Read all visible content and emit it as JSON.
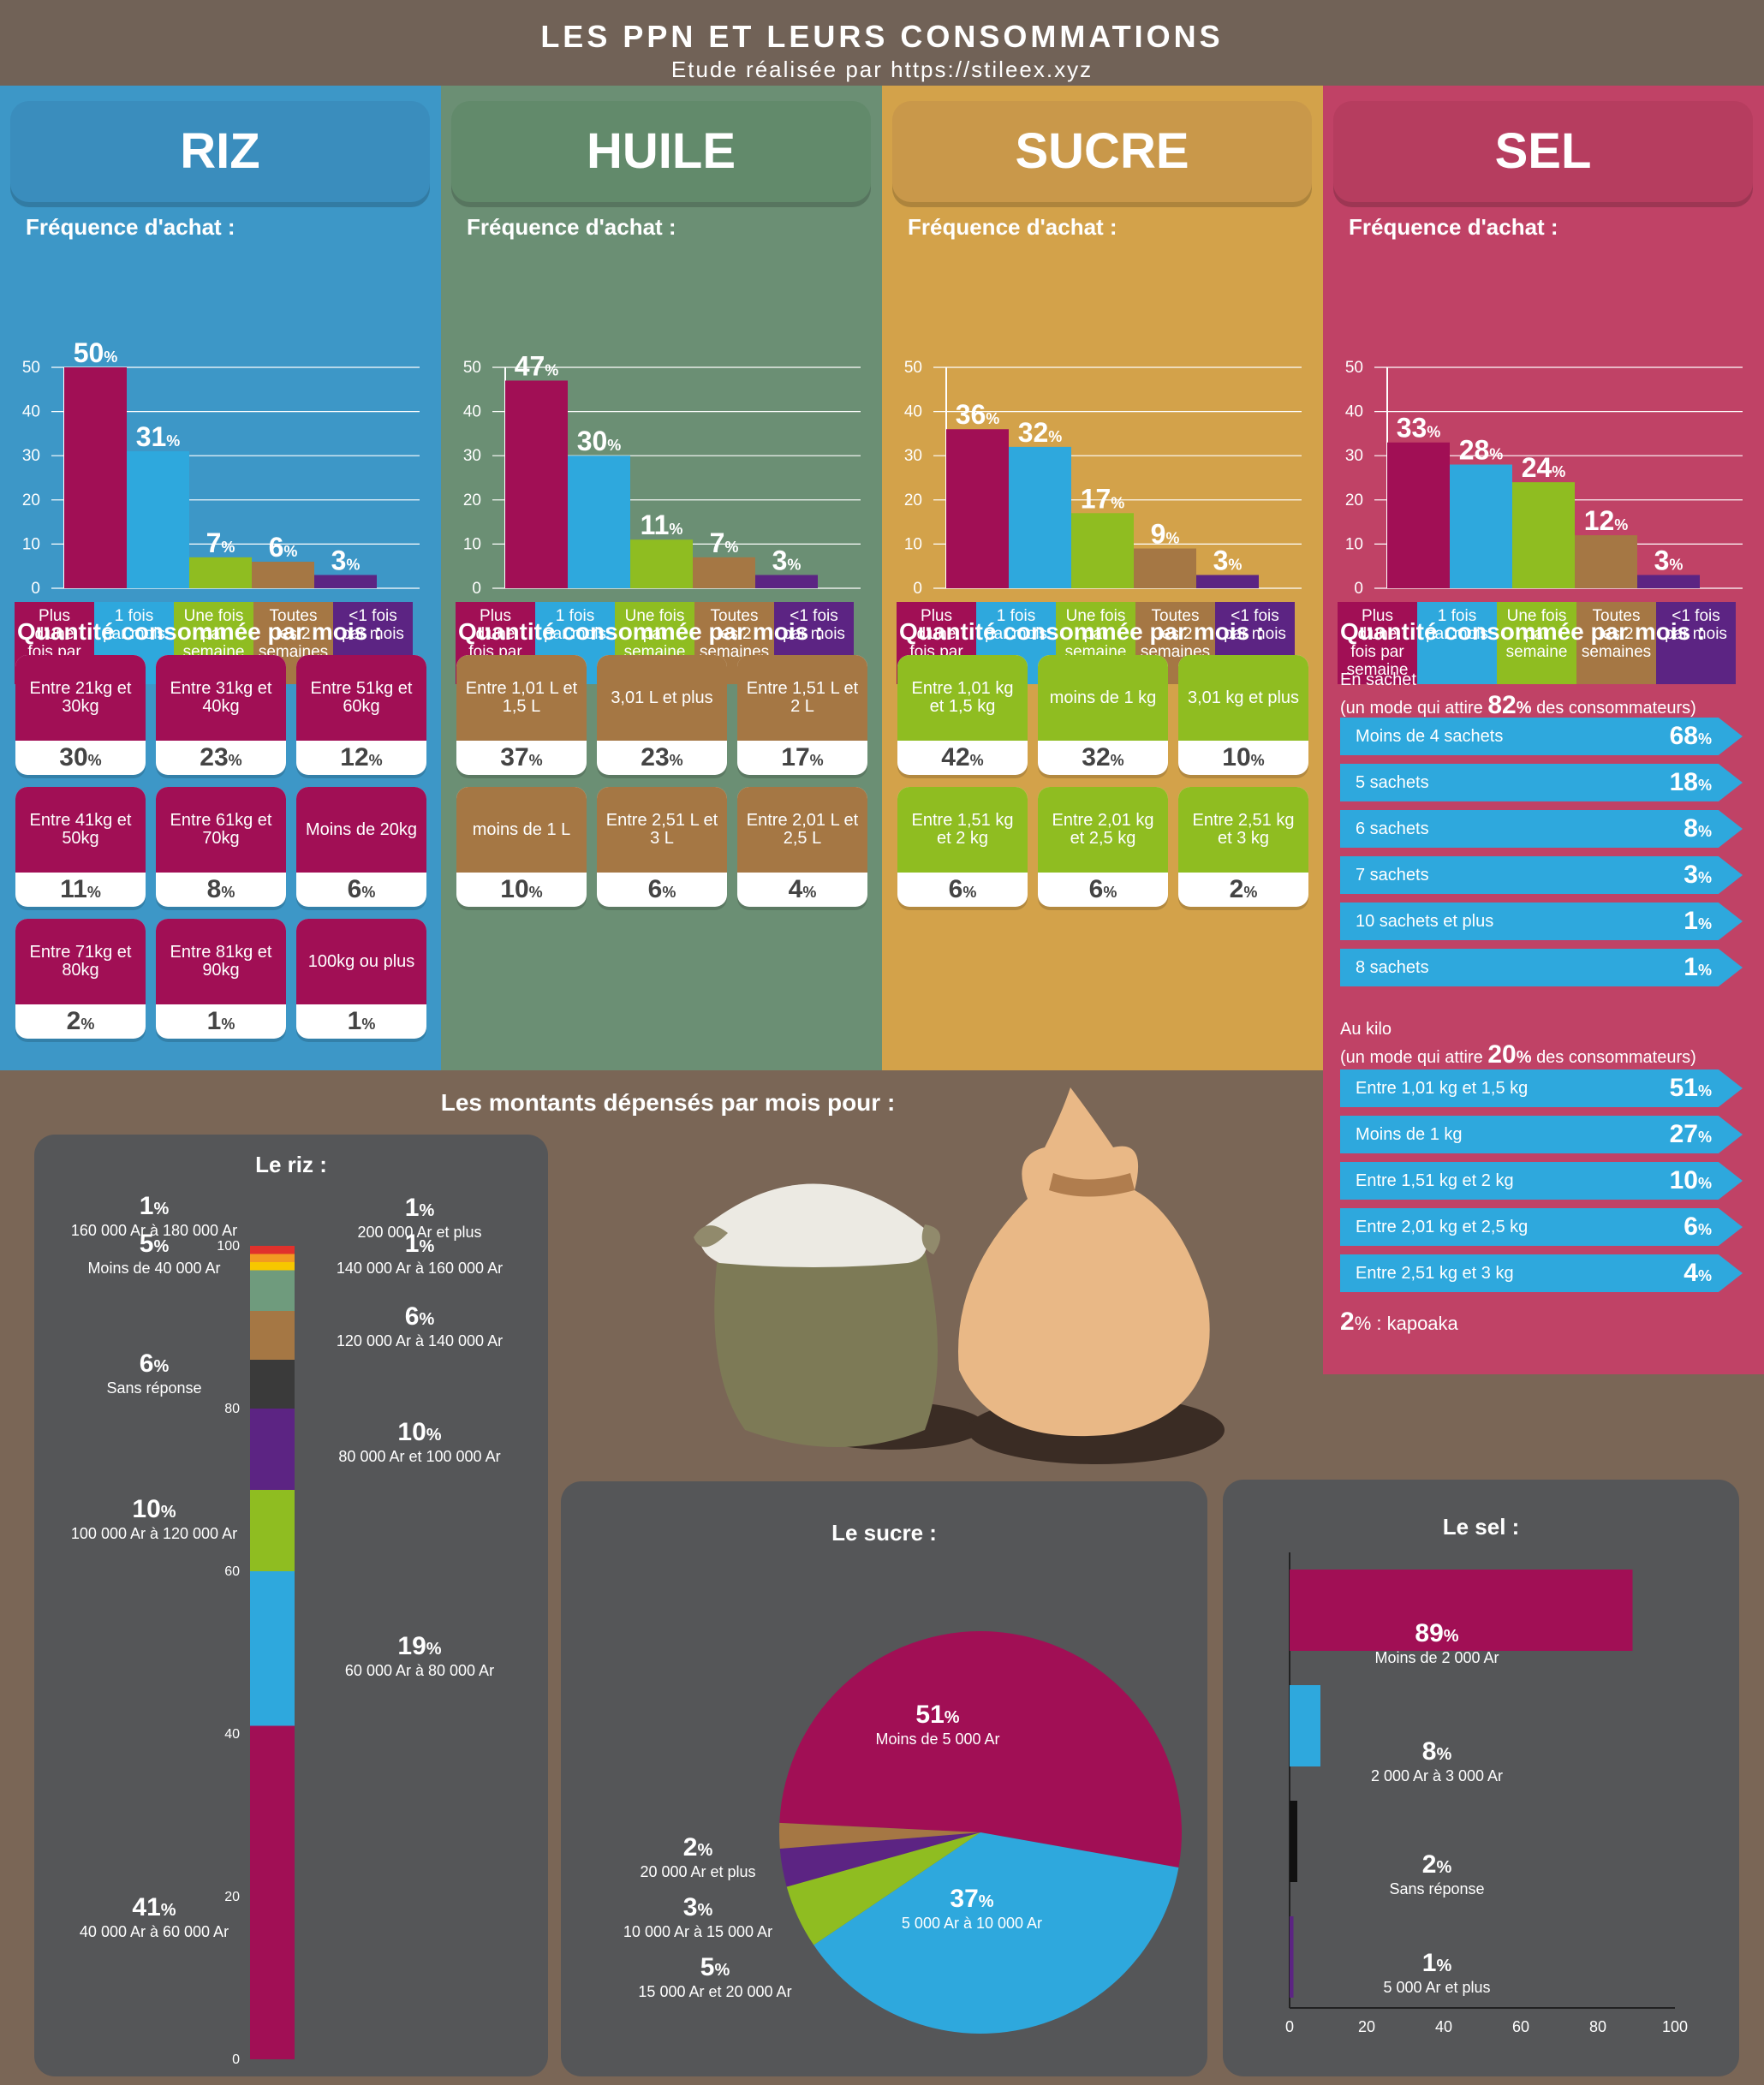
{
  "header": {
    "title": "LES PPN ET LEURS CONSOMMATIONS",
    "subtitle": "Etude réalisée par https://stileex.xyz"
  },
  "freq_label": "Fréquence d'achat :",
  "qty_label": "Quantité consommée par mois :",
  "pct_sign": "%",
  "categories": [
    "Plus d'une fois par semaine",
    "1 fois par mois",
    "Une fois par semaine",
    "Toutes les 2 semaines",
    "<1 fois par mois"
  ],
  "colors": {
    "plum": "#a10f55",
    "blue": "#2ea8dd",
    "green": "#8fbd21",
    "brown": "#a57744",
    "purple": "#5c2483",
    "dark": "#3a3a3a",
    "teal": "#6f9b7d",
    "red": "#e0312c",
    "orange": "#f29a22",
    "yellow": "#f7c700"
  },
  "chart_data": [
    {
      "type": "bar",
      "title": "RIZ",
      "ylim": [
        0,
        50
      ],
      "yticks": [
        0,
        10,
        20,
        30,
        40,
        50
      ],
      "categories": [
        "Plus d'une fois par semaine",
        "1 fois par mois",
        "Une fois par semaine",
        "Toutes les 2 semaines",
        "<1 fois par mois"
      ],
      "values": [
        50,
        31,
        7,
        6,
        3
      ]
    },
    {
      "type": "bar",
      "title": "HUILE",
      "ylim": [
        0,
        50
      ],
      "yticks": [
        0,
        10,
        20,
        30,
        40,
        50
      ],
      "categories": [
        "Plus d'une fois par semaine",
        "1 fois par mois",
        "Une fois par semaine",
        "Toutes les 2 semaines",
        "<1 fois par mois"
      ],
      "values": [
        47,
        30,
        11,
        7,
        3
      ]
    },
    {
      "type": "bar",
      "title": "SUCRE",
      "ylim": [
        0,
        50
      ],
      "yticks": [
        0,
        10,
        20,
        30,
        40,
        50
      ],
      "categories": [
        "Plus d'une fois par semaine",
        "1 fois par mois",
        "Une fois par semaine",
        "Toutes les 2 semaines",
        "<1 fois par mois"
      ],
      "values": [
        36,
        32,
        17,
        9,
        3
      ]
    },
    {
      "type": "bar",
      "title": "SEL",
      "ylim": [
        0,
        50
      ],
      "yticks": [
        0,
        10,
        20,
        30,
        40,
        50
      ],
      "categories": [
        "Plus d'une fois par semaine",
        "1 fois par mois",
        "Une fois par semaine",
        "Toutes les 2 semaines",
        "<1 fois par mois"
      ],
      "values": [
        33,
        28,
        24,
        12,
        3
      ]
    },
    {
      "type": "bar",
      "title": "Le riz :",
      "ylim": [
        0,
        100
      ],
      "yticks": [
        0,
        20,
        40,
        60,
        80,
        100
      ],
      "segments": [
        {
          "label": "40 000 Ar à 60 000 Ar",
          "value": 41,
          "color": "#a10f55"
        },
        {
          "label": "60 000 Ar à 80 000 Ar",
          "value": 19,
          "color": "#2ea8dd"
        },
        {
          "label": "100 000 Ar à 120 000 Ar",
          "value": 10,
          "color": "#8fbd21"
        },
        {
          "label": "80 000 Ar et 100 000 Ar",
          "value": 10,
          "color": "#5c2483"
        },
        {
          "label": "Sans réponse",
          "value": 6,
          "color": "#3a3a3a"
        },
        {
          "label": "120 000 Ar à 140 000 Ar",
          "value": 6,
          "color": "#a57744"
        },
        {
          "label": "Moins de 40 000 Ar",
          "value": 5,
          "color": "#6f9b7d"
        },
        {
          "label": "140 000 Ar à 160 000 Ar",
          "value": 1,
          "color": "#f7c700"
        },
        {
          "label": "160 000 Ar à 180 000 Ar",
          "value": 1,
          "color": "#f29a22"
        },
        {
          "label": "200 000 Ar et plus",
          "value": 1,
          "color": "#e0312c"
        }
      ]
    },
    {
      "type": "pie",
      "title": "Le sucre :",
      "slices": [
        {
          "label": "Moins de 5 000 Ar",
          "value": 51,
          "color": "#a10f55"
        },
        {
          "label": "5 000 Ar à 10 000 Ar",
          "value": 37,
          "color": "#2ea8dd"
        },
        {
          "label": "15 000 Ar et 20 000 Ar",
          "value": 5,
          "color": "#8fbd21"
        },
        {
          "label": "10 000 Ar à 15 000 Ar",
          "value": 3,
          "color": "#5c2483"
        },
        {
          "label": "20 000 Ar et plus",
          "value": 2,
          "color": "#a57744"
        }
      ]
    },
    {
      "type": "bar",
      "title": "Le sel :",
      "orientation": "horizontal",
      "xlim": [
        0,
        100
      ],
      "xticks": [
        0,
        20,
        40,
        60,
        80,
        100
      ],
      "bars": [
        {
          "label": "Moins de 2 000 Ar",
          "value": 89,
          "color": "#a10f55"
        },
        {
          "label": "2 000 Ar à 3 000 Ar",
          "value": 8,
          "color": "#2ea8dd"
        },
        {
          "label": "Sans réponse",
          "value": 2,
          "color": "#111111"
        },
        {
          "label": "5 000 Ar et plus",
          "value": 1,
          "color": "#5c2483"
        }
      ]
    }
  ],
  "riz_qty": [
    [
      "Entre 21kg et 30kg",
      "30"
    ],
    [
      "Entre 31kg et 40kg",
      "23"
    ],
    [
      "Entre 51kg et 60kg",
      "12"
    ],
    [
      "Entre 41kg et 50kg",
      "11"
    ],
    [
      "Entre 61kg et 70kg",
      "8"
    ],
    [
      "Moins de 20kg",
      "6"
    ],
    [
      "Entre 71kg et 80kg",
      "2"
    ],
    [
      "Entre 81kg et 90kg",
      "1"
    ],
    [
      "100kg ou plus",
      "1"
    ]
  ],
  "huile_qty": [
    [
      "Entre 1,01 L et 1,5 L",
      "37"
    ],
    [
      "3,01 L et plus",
      "23"
    ],
    [
      "Entre 1,51 L et 2 L",
      "17"
    ],
    [
      "moins de 1 L",
      "10"
    ],
    [
      "Entre 2,51 L et 3 L",
      "6"
    ],
    [
      "Entre 2,01 L et 2,5 L",
      "4"
    ]
  ],
  "sucre_qty": [
    [
      "Entre 1,01 kg et 1,5 kg",
      "42"
    ],
    [
      "moins de 1 kg",
      "32"
    ],
    [
      "3,01 kg et plus",
      "10"
    ],
    [
      "Entre 1,51 kg et 2 kg",
      "6"
    ],
    [
      "Entre 2,01 kg et 2,5 kg",
      "6"
    ],
    [
      "Entre 2,51 kg et 3 kg",
      "2"
    ]
  ],
  "sel": {
    "sachet_intro": "En sachet",
    "sachet_mode_a": "(un mode qui attire",
    "sachet_pct": "82",
    "sachet_mode_b": "des consommateurs)",
    "sachets": [
      [
        "Moins de 4 sachets",
        "68"
      ],
      [
        "5 sachets",
        "18"
      ],
      [
        "6 sachets",
        "8"
      ],
      [
        "7 sachets",
        "3"
      ],
      [
        "10 sachets et plus",
        "1"
      ],
      [
        "8 sachets",
        "1"
      ]
    ],
    "kilo_intro": "Au kilo",
    "kilo_mode_a": "(un mode qui attire",
    "kilo_pct": "20",
    "kilo_mode_b": "des consommateurs)",
    "kilos": [
      [
        "Entre 1,01 kg et 1,5 kg",
        "51"
      ],
      [
        "Moins de 1 kg",
        "27"
      ],
      [
        "Entre 1,51 kg et 2 kg",
        "10"
      ],
      [
        "Entre 2,01 kg et 2,5 kg",
        "6"
      ],
      [
        "Entre 2,51 kg et 3 kg",
        "4"
      ]
    ],
    "kapoaka_pct": "2",
    "kapoaka_label": ": kapoaka"
  },
  "spend_title": "Les montants dépensés par mois pour :"
}
